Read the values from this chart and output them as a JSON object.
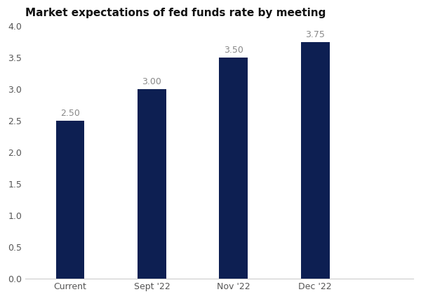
{
  "categories": [
    "Current",
    "Sept '22",
    "Nov '22",
    "Dec '22"
  ],
  "values": [
    2.5,
    3.0,
    3.5,
    3.75
  ],
  "bar_color": "#0d1f52",
  "title": "Market expectations of fed funds rate by meeting",
  "title_fontsize": 11,
  "title_fontweight": "bold",
  "ylim": [
    0,
    4.0
  ],
  "yticks": [
    0.0,
    0.5,
    1.0,
    1.5,
    2.0,
    2.5,
    3.0,
    3.5,
    4.0
  ],
  "bar_width": 0.35,
  "label_fontsize": 9,
  "tick_fontsize": 9,
  "background_color": "#ffffff",
  "value_labels": [
    "2.50",
    "3.00",
    "3.50",
    "3.75"
  ],
  "value_label_color": "#888888",
  "tick_label_color": "#555555",
  "spine_color": "#cccccc",
  "x_positions": [
    0,
    1,
    2,
    3
  ],
  "xlim_left": -0.55,
  "xlim_right": 4.2
}
